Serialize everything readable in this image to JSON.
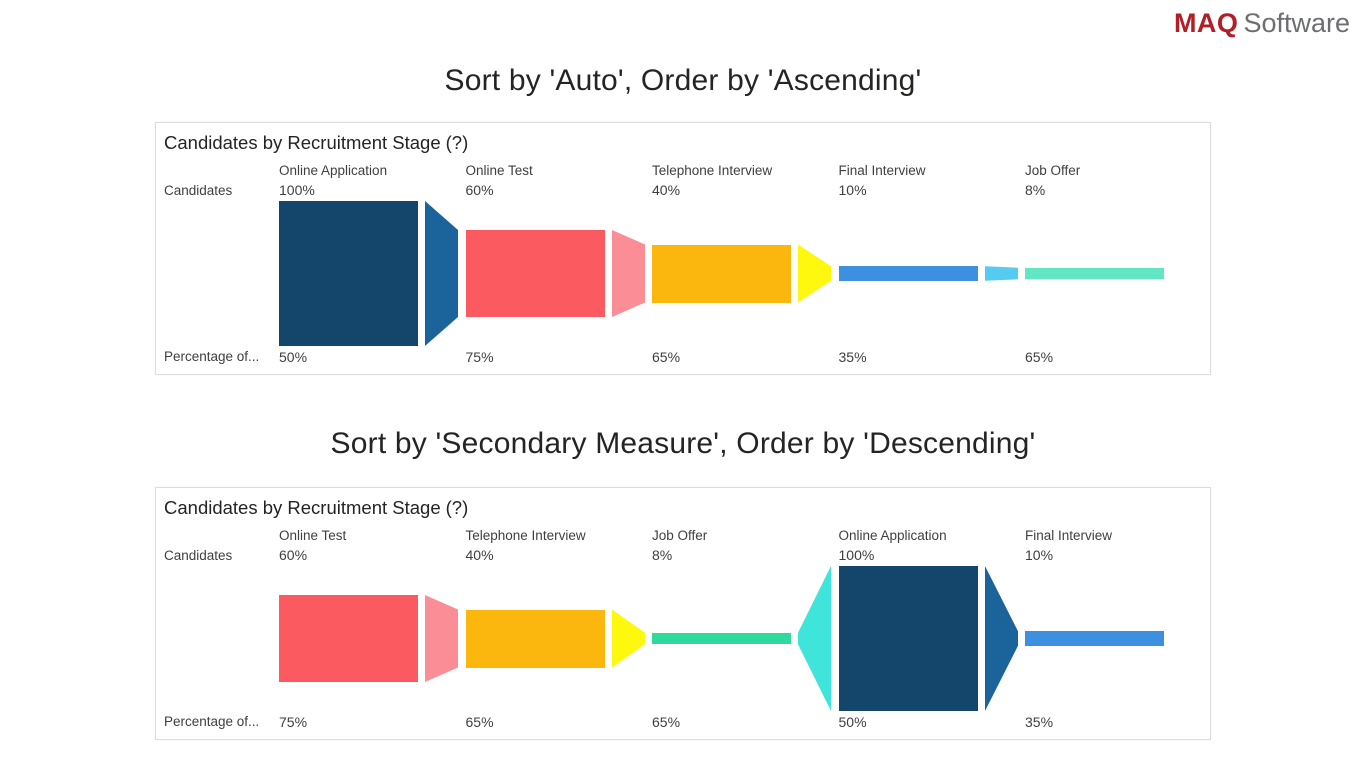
{
  "logo": {
    "brand": "MAQ",
    "name": "Software",
    "brand_color": "#b01e28",
    "name_color": "#6d6e71"
  },
  "sections": [
    {
      "heading": "Sort by 'Auto', Order by 'Ascending'",
      "card": {
        "title": "Candidates by Recruitment Stage",
        "help": "(?)",
        "left_axis_top": "Candidates",
        "left_axis_bottom": "Percentage of...",
        "stages": [
          {
            "name": "Online Application",
            "primary": "100%",
            "secondary": "50%",
            "value": 100,
            "bar_color": "#14466b",
            "connector_color": "#1b649b"
          },
          {
            "name": "Online Test",
            "primary": "60%",
            "secondary": "75%",
            "value": 60,
            "bar_color": "#fb5a60",
            "connector_color": "#fb8d96"
          },
          {
            "name": "Telephone Interview",
            "primary": "40%",
            "secondary": "65%",
            "value": 40,
            "bar_color": "#fbb70d",
            "connector_color": "#fdf80e"
          },
          {
            "name": "Final Interview",
            "primary": "10%",
            "secondary": "35%",
            "value": 10,
            "bar_color": "#3d90e0",
            "connector_color": "#55cbf2"
          },
          {
            "name": "Job Offer",
            "primary": "8%",
            "secondary": "65%",
            "value": 8,
            "bar_color": "#63e6c3",
            "connector_color": null
          }
        ]
      }
    },
    {
      "heading": "Sort by 'Secondary Measure', Order by 'Descending'",
      "card": {
        "title": "Candidates by Recruitment Stage",
        "help": "(?)",
        "left_axis_top": "Candidates",
        "left_axis_bottom": "Percentage of...",
        "stages": [
          {
            "name": "Online Test",
            "primary": "60%",
            "secondary": "75%",
            "value": 60,
            "bar_color": "#fb5a60",
            "connector_color": "#fb8d96"
          },
          {
            "name": "Telephone Interview",
            "primary": "40%",
            "secondary": "65%",
            "value": 40,
            "bar_color": "#fbb70d",
            "connector_color": "#fdf80e"
          },
          {
            "name": "Job Offer",
            "primary": "8%",
            "secondary": "65%",
            "value": 8,
            "bar_color": "#2eda9d",
            "connector_color": "#3fe5da"
          },
          {
            "name": "Online Application",
            "primary": "100%",
            "secondary": "50%",
            "value": 100,
            "bar_color": "#14466b",
            "connector_color": "#1b649b"
          },
          {
            "name": "Final Interview",
            "primary": "10%",
            "secondary": "35%",
            "value": 10,
            "bar_color": "#3d90e0",
            "connector_color": null
          }
        ]
      }
    }
  ],
  "chart_data": [
    {
      "type": "funnel",
      "orientation": "horizontal",
      "title": "Candidates by Recruitment Stage",
      "sort_by": "Auto",
      "order": "Ascending",
      "primary_measure_label": "Candidates",
      "secondary_measure_label": "Percentage of...",
      "categories": [
        "Online Application",
        "Online Test",
        "Telephone Interview",
        "Final Interview",
        "Job Offer"
      ],
      "series": [
        {
          "name": "Candidates (%)",
          "values": [
            100,
            60,
            40,
            10,
            8
          ]
        },
        {
          "name": "Percentage of... (%)",
          "values": [
            50,
            75,
            65,
            35,
            65
          ]
        }
      ],
      "colors": [
        "#14466b",
        "#fb5a60",
        "#fbb70d",
        "#3d90e0",
        "#63e6c3"
      ],
      "legend": "off",
      "grid": "off"
    },
    {
      "type": "funnel",
      "orientation": "horizontal",
      "title": "Candidates by Recruitment Stage",
      "sort_by": "Secondary Measure",
      "order": "Descending",
      "primary_measure_label": "Candidates",
      "secondary_measure_label": "Percentage of...",
      "categories": [
        "Online Test",
        "Telephone Interview",
        "Job Offer",
        "Online Application",
        "Final Interview"
      ],
      "series": [
        {
          "name": "Candidates (%)",
          "values": [
            60,
            40,
            8,
            100,
            10
          ]
        },
        {
          "name": "Percentage of... (%)",
          "values": [
            75,
            65,
            65,
            50,
            35
          ]
        }
      ],
      "colors": [
        "#fb5a60",
        "#fbb70d",
        "#2eda9d",
        "#14466b",
        "#3d90e0"
      ],
      "legend": "off",
      "grid": "off"
    }
  ]
}
